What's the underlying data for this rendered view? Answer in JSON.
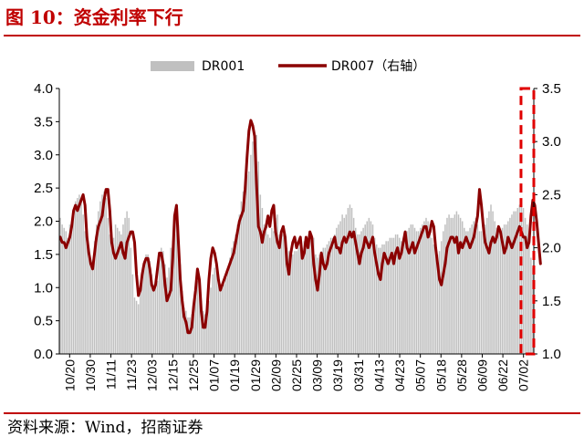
{
  "figure": {
    "title": "图 10：资金利率下行",
    "source": "资料来源：Wind，招商证券"
  },
  "colors": {
    "accent": "#c00000",
    "bar": "#c0c0c0",
    "line": "#8b0000",
    "highlight_box": "#e00000"
  },
  "chart_data": {
    "type": "bar",
    "legend_position": "top-center",
    "grid": false,
    "series": [
      {
        "name": "DR001",
        "type": "bar",
        "axis": "left",
        "color": "#c0c0c0",
        "values": [
          2.05,
          1.95,
          1.9,
          1.85,
          1.75,
          1.95,
          1.9,
          2.15,
          2.3,
          2.35,
          2.4,
          2.35,
          2.1,
          1.85,
          1.7,
          1.6,
          1.38,
          1.38,
          1.7,
          1.95,
          2.15,
          2.3,
          2.4,
          2.45,
          2.35,
          2.05,
          1.8,
          1.7,
          1.75,
          1.95,
          1.9,
          1.85,
          1.8,
          1.95,
          2.05,
          2.15,
          2.05,
          1.6,
          1.2,
          0.85,
          0.8,
          0.75,
          0.95,
          1.2,
          1.4,
          1.5,
          1.5,
          1.4,
          1.2,
          1.05,
          1.0,
          1.1,
          1.45,
          1.6,
          1.55,
          1.35,
          1.15,
          1.3,
          1.6,
          1.7,
          1.8,
          2.2,
          1.95,
          1.35,
          0.95,
          0.7,
          0.65,
          0.55,
          0.55,
          0.6,
          0.75,
          0.85,
          1.1,
          1.0,
          0.8,
          0.65,
          0.6,
          0.65,
          0.8,
          1.0,
          1.2,
          1.3,
          1.25,
          1.15,
          1.05,
          1.0,
          1.05,
          1.15,
          1.3,
          1.45,
          1.6,
          1.7,
          1.8,
          1.95,
          2.1,
          2.3,
          2.45,
          2.6,
          2.7,
          2.75,
          3.0,
          3.2,
          3.25,
          3.3,
          2.9,
          2.4,
          2.2,
          1.95,
          1.85,
          1.8,
          1.75,
          1.9,
          1.85,
          2.05,
          2.1,
          1.8,
          1.75,
          1.8,
          1.8,
          1.6,
          1.55,
          1.5,
          1.5,
          1.55,
          1.55,
          1.6,
          1.65,
          1.6,
          1.7,
          1.75,
          1.7,
          1.75,
          1.8,
          1.75,
          1.5,
          1.45,
          1.5,
          1.55,
          1.6,
          1.6,
          1.65,
          1.7,
          1.75,
          1.75,
          1.8,
          1.9,
          1.95,
          2.0,
          2.1,
          2.05,
          2.1,
          2.2,
          2.25,
          2.2,
          2.05,
          1.9,
          1.8,
          1.8,
          1.85,
          1.9,
          1.95,
          2.0,
          2.05,
          2.0,
          1.95,
          1.75,
          1.65,
          1.6,
          1.6,
          1.65,
          1.65,
          1.7,
          1.7,
          1.75,
          1.75,
          1.75,
          1.8,
          1.8,
          1.75,
          1.7,
          1.75,
          1.8,
          1.85,
          1.9,
          1.95,
          1.95,
          1.9,
          1.85,
          1.85,
          1.9,
          1.95,
          2.0,
          2.05,
          2.0,
          1.95,
          1.75,
          1.65,
          1.55,
          1.5,
          1.55,
          1.7,
          1.85,
          1.95,
          2.05,
          2.1,
          2.05,
          2.05,
          2.1,
          2.15,
          2.1,
          2.05,
          2.0,
          1.9,
          1.85,
          1.85,
          1.9,
          1.95,
          2.0,
          2.05,
          1.95,
          1.85,
          1.85,
          1.9,
          1.95,
          2.05,
          2.15,
          2.25,
          2.15,
          2.0,
          1.9,
          1.85,
          1.85,
          1.9,
          1.95,
          1.95,
          2.0,
          2.05,
          2.1,
          2.15,
          2.15,
          2.2,
          2.25,
          2.3,
          2.2,
          2.05,
          1.95,
          1.7,
          1.45,
          1.3
        ]
      },
      {
        "name": "DR007（右轴）",
        "type": "line",
        "axis": "right",
        "color": "#8b0000",
        "values": [
          2.1,
          2.05,
          2.05,
          2.0,
          2.05,
          2.1,
          2.2,
          2.35,
          2.4,
          2.35,
          2.4,
          2.45,
          2.5,
          2.4,
          2.1,
          1.95,
          1.85,
          1.8,
          1.95,
          2.1,
          2.2,
          2.25,
          2.3,
          2.45,
          2.55,
          2.55,
          2.35,
          2.05,
          1.95,
          1.9,
          1.95,
          2.0,
          2.05,
          1.95,
          1.9,
          2.05,
          2.1,
          2.15,
          2.15,
          2.05,
          1.75,
          1.55,
          1.6,
          1.75,
          1.85,
          1.9,
          1.9,
          1.8,
          1.65,
          1.6,
          1.65,
          1.8,
          1.95,
          1.95,
          1.85,
          1.65,
          1.5,
          1.55,
          1.6,
          1.9,
          2.3,
          2.4,
          2.05,
          1.7,
          1.5,
          1.35,
          1.3,
          1.2,
          1.2,
          1.25,
          1.45,
          1.6,
          1.8,
          1.7,
          1.4,
          1.25,
          1.25,
          1.4,
          1.7,
          1.9,
          2.0,
          1.95,
          1.85,
          1.7,
          1.6,
          1.65,
          1.7,
          1.75,
          1.8,
          1.85,
          1.9,
          1.95,
          2.05,
          2.15,
          2.25,
          2.3,
          2.35,
          2.55,
          2.85,
          3.1,
          3.2,
          3.15,
          3.05,
          2.6,
          2.2,
          2.15,
          2.05,
          2.15,
          2.2,
          2.3,
          2.2,
          2.35,
          2.4,
          2.15,
          2.05,
          2.0,
          2.15,
          2.2,
          2.1,
          1.85,
          1.75,
          1.95,
          2.05,
          2.1,
          2.0,
          2.05,
          2.1,
          1.9,
          1.95,
          2.1,
          2.0,
          2.15,
          2.1,
          1.85,
          1.7,
          1.6,
          1.75,
          1.95,
          1.85,
          1.8,
          1.85,
          1.95,
          2.0,
          2.05,
          2.1,
          2.0,
          2.0,
          1.95,
          2.05,
          2.1,
          2.05,
          2.1,
          2.15,
          2.1,
          2.15,
          2.05,
          1.95,
          1.85,
          1.95,
          2.0,
          2.1,
          2.05,
          2.0,
          2.05,
          2.1,
          1.95,
          1.85,
          1.75,
          1.7,
          1.85,
          1.95,
          1.9,
          1.85,
          1.9,
          1.95,
          1.85,
          1.95,
          2.0,
          1.9,
          1.95,
          2.05,
          2.15,
          2.0,
          1.95,
          2.0,
          2.05,
          1.95,
          2.0,
          2.05,
          2.1,
          2.15,
          2.2,
          2.2,
          2.1,
          2.15,
          2.25,
          2.2,
          2.0,
          1.85,
          1.7,
          1.65,
          1.75,
          1.85,
          2.0,
          2.05,
          2.1,
          2.1,
          2.05,
          2.1,
          1.95,
          2.05,
          2.0,
          2.05,
          2.1,
          2.05,
          2.0,
          2.05,
          2.1,
          2.2,
          2.3,
          2.55,
          2.4,
          2.2,
          2.05,
          2.0,
          1.95,
          2.05,
          2.1,
          2.05,
          2.1,
          2.2,
          2.15,
          2.05,
          1.95,
          2.0,
          2.1,
          2.05,
          2.0,
          2.05,
          2.1,
          2.15,
          2.2,
          2.15,
          2.1,
          2.1,
          2.0,
          2.05,
          2.3,
          2.45,
          2.4,
          2.25,
          2.05,
          1.85
        ]
      }
    ],
    "x_tick_labels": [
      "10/20",
      "10/30",
      "11/11",
      "11/23",
      "12/03",
      "12/15",
      "12/25",
      "01/07",
      "01/19",
      "01/29",
      "02/09",
      "02/25",
      "03/09",
      "03/19",
      "03/31",
      "04/13",
      "04/23",
      "05/07",
      "05/18",
      "05/28",
      "06/09",
      "06/22",
      "07/02"
    ],
    "y_left": {
      "ylim": [
        0,
        4.0
      ],
      "ticks": [
        "0.0",
        "0.5",
        "1.0",
        "1.5",
        "2.0",
        "2.5",
        "3.0",
        "3.5",
        "4.0"
      ]
    },
    "y_right": {
      "ylim": [
        1.0,
        3.5
      ],
      "ticks": [
        "1.0",
        "1.5",
        "2.0",
        "2.5",
        "3.0",
        "3.5"
      ]
    },
    "annotations": [
      {
        "type": "dashed-box",
        "color": "#e00000",
        "x_range_fraction": [
          0.973,
          1.0
        ],
        "y_range_right": [
          1.0,
          3.5
        ]
      }
    ]
  }
}
